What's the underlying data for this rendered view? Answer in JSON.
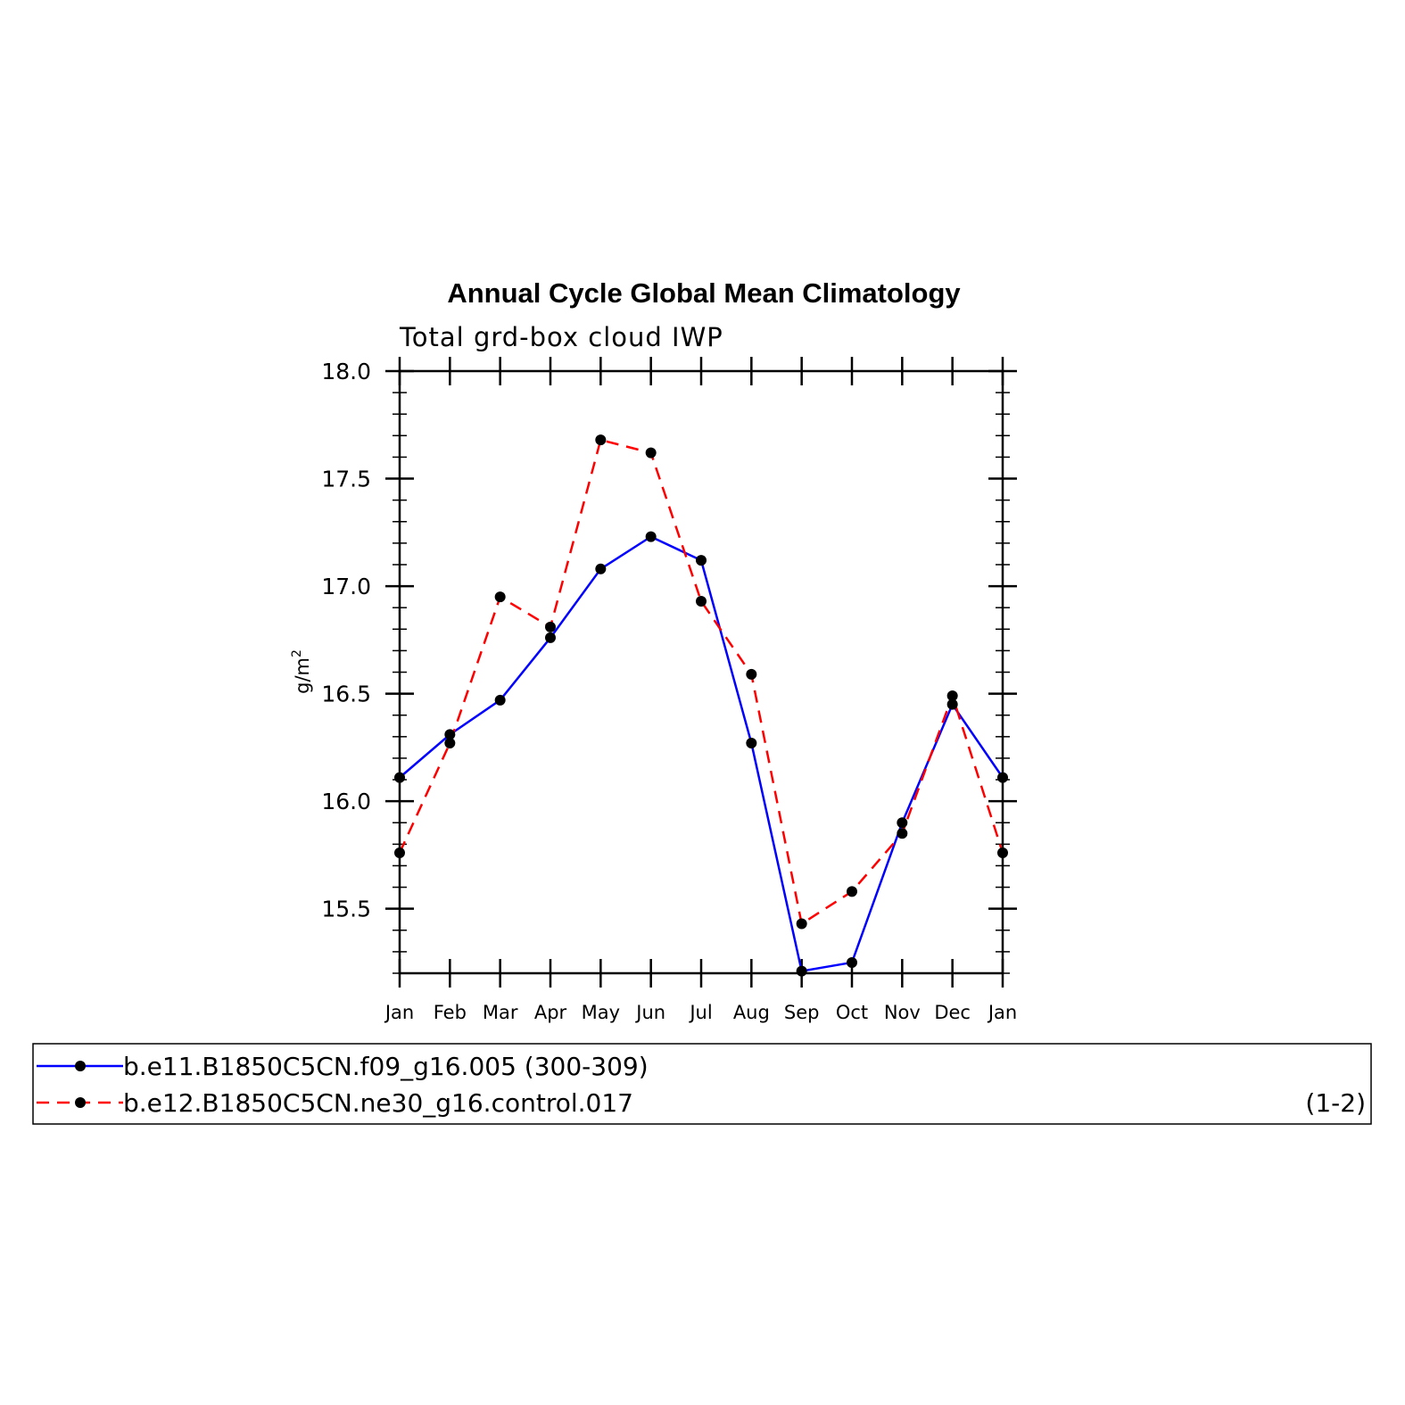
{
  "chart_data": {
    "type": "line",
    "title": "Annual Cycle Global Mean Climatology",
    "subtitle": "Total grd-box cloud IWP",
    "ylabel": "g/m",
    "ylabel_sup": "2",
    "categories": [
      "Jan",
      "Feb",
      "Mar",
      "Apr",
      "May",
      "Jun",
      "Jul",
      "Aug",
      "Sep",
      "Oct",
      "Nov",
      "Dec",
      "Jan"
    ],
    "ylim": [
      15.2,
      18.0
    ],
    "yticks": [
      "15.5",
      "16.0",
      "16.5",
      "17.0",
      "17.5",
      "18.0"
    ],
    "series": [
      {
        "name": "b.e11.B1850C5CN.f09_g16.005 (300-309)",
        "color": "#0000ff",
        "dash": "solid",
        "values": [
          16.11,
          16.31,
          16.47,
          16.76,
          17.08,
          17.23,
          17.12,
          16.27,
          15.21,
          15.25,
          15.9,
          16.45,
          16.11
        ]
      },
      {
        "name": "b.e12.B1850C5CN.ne30_g16.control.017",
        "color": "#ff0000",
        "dash": "dashed",
        "values": [
          15.76,
          16.27,
          16.95,
          16.81,
          17.68,
          17.62,
          16.93,
          16.59,
          15.43,
          15.58,
          15.85,
          16.49,
          15.76
        ]
      }
    ],
    "legend_note": "(1-2)"
  }
}
